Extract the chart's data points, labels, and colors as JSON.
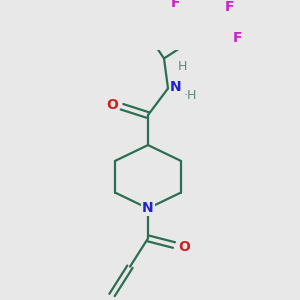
{
  "bg_color": "#e8e8e8",
  "bond_color": "#2d6e52",
  "N_color": "#2222cc",
  "O_color": "#cc2222",
  "F_color": "#cc22cc",
  "H_color": "#5a8a7a",
  "line_width": 1.6,
  "figsize": [
    3.0,
    3.0
  ],
  "dpi": 100,
  "xlim": [
    0,
    300
  ],
  "ylim": [
    0,
    300
  ]
}
